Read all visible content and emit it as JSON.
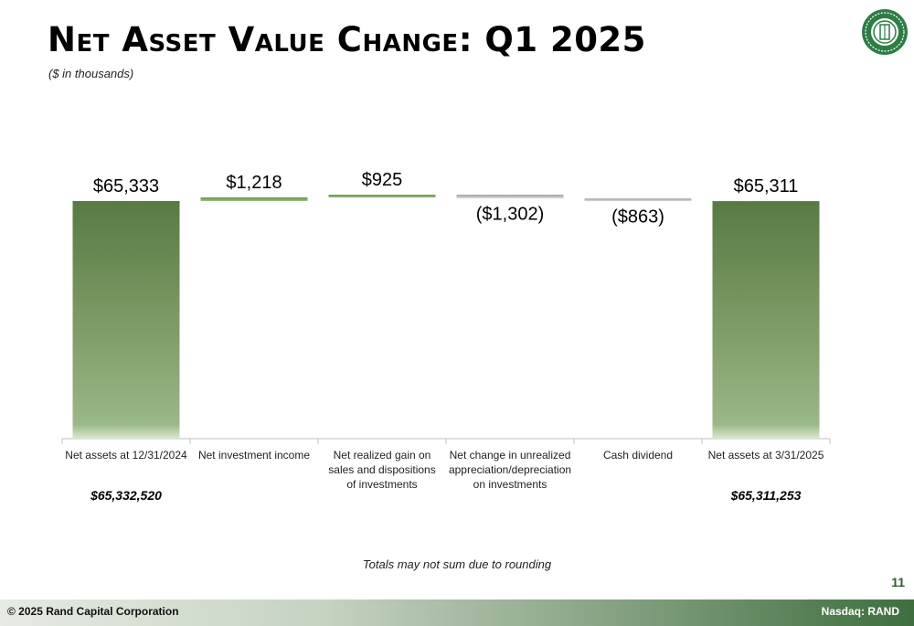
{
  "header": {
    "title": "Net Asset Value Change: Q1 2025",
    "subtitle": "($ in thousands)"
  },
  "logo": {
    "icon": "rand-capital-seal-icon"
  },
  "chart_data": {
    "type": "bar",
    "subtype": "waterfall",
    "categories": [
      "Net assets at 12/31/2024",
      "Net investment income",
      "Net realized gain on sales and dispositions of investments",
      "Net change in unrealized appreciation/depreciation on investments",
      "Cash dividend",
      "Net assets at 3/31/2025"
    ],
    "values": [
      65333,
      1218,
      925,
      -1302,
      -863,
      65311
    ],
    "value_labels": [
      "$65,333",
      "$1,218",
      "$925",
      "($1,302)",
      "($863)",
      "$65,311"
    ],
    "exact_totals": [
      "$65,332,520",
      "",
      "",
      "",
      "",
      "$65,311,253"
    ],
    "colors": {
      "total": "#5f7f4c",
      "increase": "#6e9a50",
      "decrease": "#bdbdbd"
    }
  },
  "note": "Totals may not sum due to rounding",
  "page_number": "11",
  "footer": {
    "left": "© 2025 Rand Capital Corporation",
    "right": "Nasdaq:  RAND"
  }
}
